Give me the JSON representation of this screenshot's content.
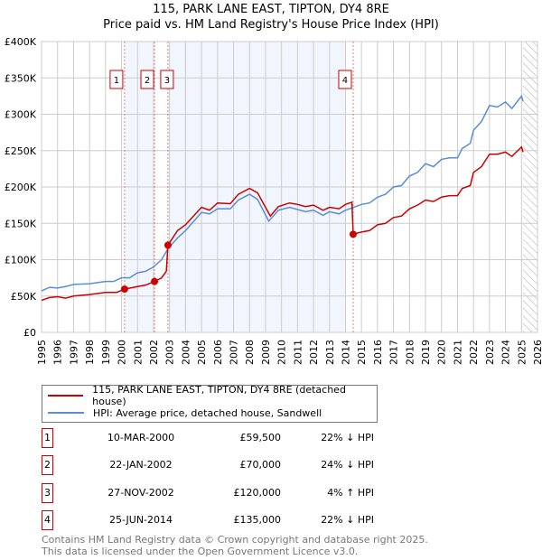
{
  "chart_data": {
    "type": "line",
    "title": "115, PARK LANE EAST, TIPTON, DY4 8RE",
    "subtitle": "Price paid vs. HM Land Registry's House Price Index (HPI)",
    "xlim": [
      1995,
      2026
    ],
    "ylim": [
      0,
      400000
    ],
    "yticks": [
      {
        "v": 0,
        "label": "£0"
      },
      {
        "v": 50000,
        "label": "£50K"
      },
      {
        "v": 100000,
        "label": "£100K"
      },
      {
        "v": 150000,
        "label": "£150K"
      },
      {
        "v": 200000,
        "label": "£200K"
      },
      {
        "v": 250000,
        "label": "£250K"
      },
      {
        "v": 300000,
        "label": "£300K"
      },
      {
        "v": 350000,
        "label": "£350K"
      },
      {
        "v": 400000,
        "label": "£400K"
      }
    ],
    "xticks": [
      "1995",
      "1996",
      "1997",
      "1998",
      "1999",
      "2000",
      "2001",
      "2002",
      "2003",
      "2004",
      "2005",
      "2006",
      "2007",
      "2008",
      "2009",
      "2010",
      "2011",
      "2012",
      "2013",
      "2014",
      "2015",
      "2016",
      "2017",
      "2018",
      "2019",
      "2020",
      "2021",
      "2022",
      "2023",
      "2024",
      "2025",
      "2026"
    ],
    "grid": true,
    "shaded_ranges": [
      [
        2000.19,
        2002.06
      ],
      [
        2002.9,
        2014.0
      ]
    ],
    "forecast_hatch_from": 2025.1,
    "series": [
      {
        "name": "115, PARK LANE EAST, TIPTON, DY4 8RE (detached house)",
        "color": "#cc0000",
        "points": [
          [
            1995,
            44000
          ],
          [
            1995.5,
            48000
          ],
          [
            1996,
            49000
          ],
          [
            1996.5,
            47000
          ],
          [
            1997,
            50000
          ],
          [
            1998,
            52000
          ],
          [
            1999,
            55000
          ],
          [
            1999.7,
            55000
          ],
          [
            2000.19,
            59500
          ],
          [
            2001,
            63000
          ],
          [
            2001.5,
            65000
          ],
          [
            2002.06,
            70000
          ],
          [
            2002.5,
            75000
          ],
          [
            2002.8,
            84000
          ],
          [
            2002.9,
            120000
          ],
          [
            2003.5,
            140000
          ],
          [
            2004,
            148000
          ],
          [
            2005,
            172000
          ],
          [
            2005.5,
            168000
          ],
          [
            2006,
            178000
          ],
          [
            2006.8,
            177000
          ],
          [
            2007.3,
            190000
          ],
          [
            2008,
            198000
          ],
          [
            2008.5,
            192000
          ],
          [
            2009.3,
            160000
          ],
          [
            2009.8,
            173000
          ],
          [
            2010.5,
            178000
          ],
          [
            2011,
            176000
          ],
          [
            2011.5,
            173000
          ],
          [
            2012,
            175000
          ],
          [
            2012.6,
            168000
          ],
          [
            2013,
            172000
          ],
          [
            2013.6,
            170000
          ],
          [
            2014,
            176000
          ],
          [
            2014.4,
            179000
          ],
          [
            2014.48,
            135000
          ],
          [
            2015,
            138000
          ],
          [
            2015.5,
            140000
          ],
          [
            2016,
            148000
          ],
          [
            2016.5,
            150000
          ],
          [
            2017,
            158000
          ],
          [
            2017.5,
            160000
          ],
          [
            2018,
            170000
          ],
          [
            2018.5,
            175000
          ],
          [
            2019,
            182000
          ],
          [
            2019.5,
            180000
          ],
          [
            2020,
            186000
          ],
          [
            2020.5,
            188000
          ],
          [
            2021,
            188000
          ],
          [
            2021.3,
            198000
          ],
          [
            2021.8,
            202000
          ],
          [
            2022,
            220000
          ],
          [
            2022.5,
            228000
          ],
          [
            2023,
            245000
          ],
          [
            2023.5,
            245000
          ],
          [
            2024,
            248000
          ],
          [
            2024.4,
            242000
          ],
          [
            2025,
            255000
          ],
          [
            2025.1,
            248000
          ]
        ]
      },
      {
        "name": "HPI: Average price, detached house, Sandwell",
        "color": "#5b8dd6",
        "points": [
          [
            1995,
            57000
          ],
          [
            1995.5,
            62000
          ],
          [
            1996,
            61000
          ],
          [
            1996.5,
            63000
          ],
          [
            1997,
            66000
          ],
          [
            1998,
            67000
          ],
          [
            1999,
            70000
          ],
          [
            1999.5,
            70000
          ],
          [
            2000,
            75000
          ],
          [
            2000.5,
            75000
          ],
          [
            2001,
            82000
          ],
          [
            2001.5,
            84000
          ],
          [
            2002,
            90000
          ],
          [
            2002.5,
            100000
          ],
          [
            2002.9,
            115000
          ],
          [
            2003.5,
            130000
          ],
          [
            2004,
            140000
          ],
          [
            2005,
            165000
          ],
          [
            2005.5,
            163000
          ],
          [
            2006,
            170000
          ],
          [
            2006.8,
            170000
          ],
          [
            2007.3,
            182000
          ],
          [
            2008,
            190000
          ],
          [
            2008.5,
            183000
          ],
          [
            2009.2,
            153000
          ],
          [
            2009.8,
            168000
          ],
          [
            2010.5,
            172000
          ],
          [
            2011,
            169000
          ],
          [
            2011.5,
            166000
          ],
          [
            2012,
            168000
          ],
          [
            2012.6,
            161000
          ],
          [
            2013,
            166000
          ],
          [
            2013.6,
            163000
          ],
          [
            2014,
            168000
          ],
          [
            2014.5,
            172000
          ],
          [
            2015,
            176000
          ],
          [
            2015.5,
            178000
          ],
          [
            2016,
            186000
          ],
          [
            2016.5,
            190000
          ],
          [
            2017,
            200000
          ],
          [
            2017.5,
            202000
          ],
          [
            2018,
            215000
          ],
          [
            2018.5,
            220000
          ],
          [
            2019,
            232000
          ],
          [
            2019.5,
            228000
          ],
          [
            2020,
            238000
          ],
          [
            2020.5,
            240000
          ],
          [
            2021,
            240000
          ],
          [
            2021.3,
            253000
          ],
          [
            2021.8,
            260000
          ],
          [
            2022,
            278000
          ],
          [
            2022.5,
            290000
          ],
          [
            2023,
            312000
          ],
          [
            2023.5,
            310000
          ],
          [
            2024,
            317000
          ],
          [
            2024.4,
            308000
          ],
          [
            2025,
            325000
          ],
          [
            2025.1,
            318000
          ]
        ]
      }
    ],
    "sales": [
      {
        "n": "1",
        "x": 2000.19,
        "y": 59500
      },
      {
        "n": "2",
        "x": 2002.06,
        "y": 70000
      },
      {
        "n": "3",
        "x": 2002.9,
        "y": 120000
      },
      {
        "n": "4",
        "x": 2014.48,
        "y": 135000
      }
    ]
  },
  "legend": {
    "property": "115, PARK LANE EAST, TIPTON, DY4 8RE (detached house)",
    "hpi": "HPI: Average price, detached house, Sandwell"
  },
  "transactions": [
    {
      "n": "1",
      "date": "10-MAR-2000",
      "price": "£59,500",
      "hpi": "22% ↓ HPI"
    },
    {
      "n": "2",
      "date": "22-JAN-2002",
      "price": "£70,000",
      "hpi": "24% ↓ HPI"
    },
    {
      "n": "3",
      "date": "27-NOV-2002",
      "price": "£120,000",
      "hpi": "4% ↑ HPI"
    },
    {
      "n": "4",
      "date": "25-JUN-2014",
      "price": "£135,000",
      "hpi": "22% ↓ HPI"
    }
  ],
  "footer": [
    "Contains HM Land Registry data © Crown copyright and database right 2025.",
    "This data is licensed under the Open Government Licence v3.0."
  ]
}
